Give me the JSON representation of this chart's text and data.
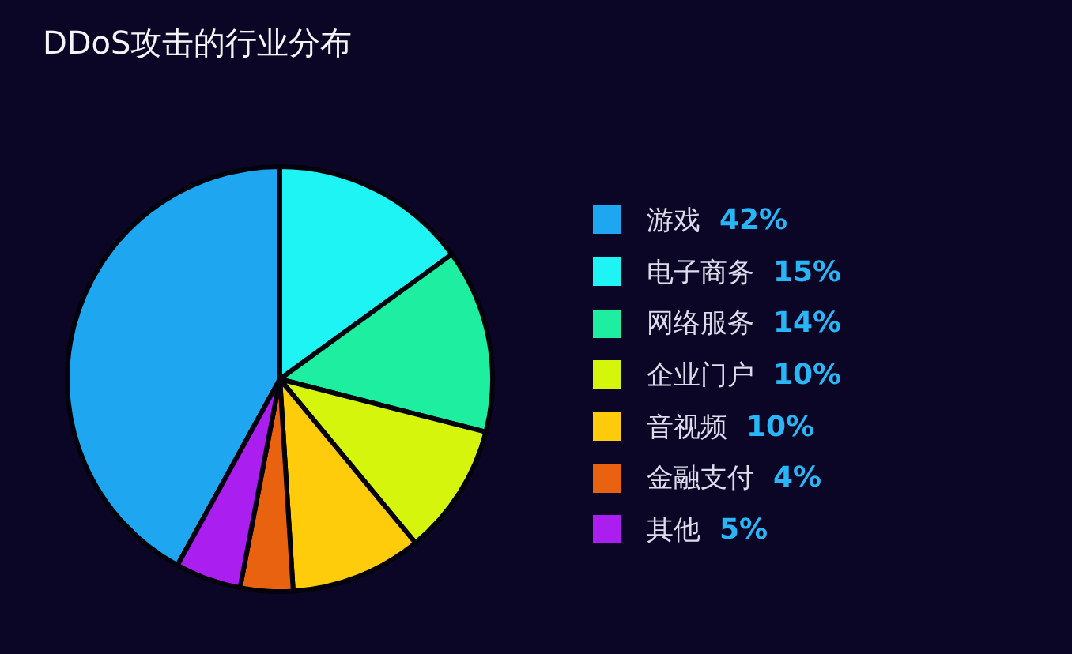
{
  "chart_data": {
    "type": "pie",
    "title": "DDoS攻击的行业分布",
    "categories": [
      "游戏",
      "电子商务",
      "网络服务",
      "企业门户",
      "音视频",
      "金融支付",
      "其他"
    ],
    "values": [
      42,
      15,
      14,
      10,
      10,
      4,
      5
    ],
    "colors": [
      "#1fa6f0",
      "#1ef4f4",
      "#1eeea0",
      "#d6f50c",
      "#ffcc0c",
      "#e8620f",
      "#aa1ef0"
    ],
    "value_labels": [
      "42%",
      "15%",
      "14%",
      "10%",
      "10%",
      "4%",
      "5%"
    ],
    "legend": "right"
  }
}
